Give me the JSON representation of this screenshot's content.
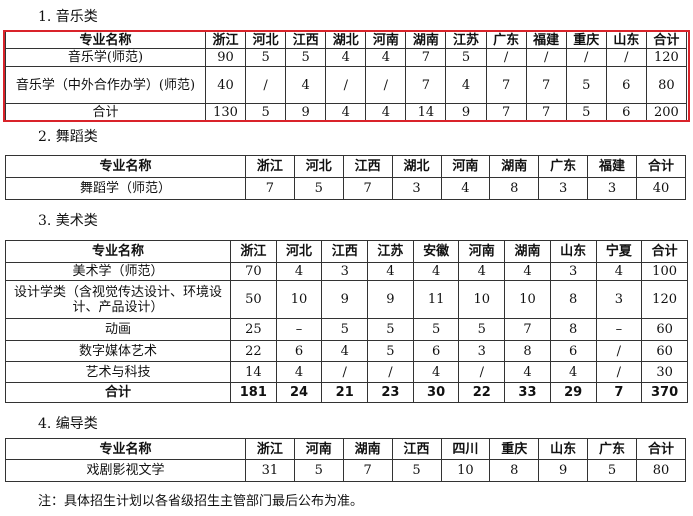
{
  "sections": [
    {
      "title": "1. 音乐类",
      "header": [
        "专业名称",
        "浙江",
        "河北",
        "江西",
        "湖北",
        "河南",
        "湖南",
        "江苏",
        "广东",
        "福建",
        "重庆",
        "山东",
        "合计"
      ],
      "rows": [
        [
          "音乐学(师范)",
          "90",
          "5",
          "5",
          "4",
          "4",
          "7",
          "5",
          "/",
          "/",
          "/",
          "/",
          "120"
        ],
        [
          "音乐学（中外合作办学）(师范)",
          "40",
          "/",
          "4",
          "/",
          "/",
          "7",
          "4",
          "7",
          "7",
          "5",
          "6",
          "80"
        ],
        [
          "合计",
          "130",
          "5",
          "9",
          "4",
          "4",
          "14",
          "9",
          "7",
          "7",
          "5",
          "6",
          "200"
        ]
      ],
      "highlight_color": "#d9232a"
    },
    {
      "title": "2. 舞蹈类",
      "header": [
        "专业名称",
        "浙江",
        "河北",
        "江西",
        "湖北",
        "河南",
        "湖南",
        "广东",
        "福建",
        "合计"
      ],
      "rows": [
        [
          "舞蹈学（师范）",
          "7",
          "5",
          "7",
          "3",
          "4",
          "8",
          "3",
          "3",
          "40"
        ]
      ]
    },
    {
      "title": "3. 美术类",
      "header": [
        "专业名称",
        "浙江",
        "河北",
        "江西",
        "江苏",
        "安徽",
        "河南",
        "湖南",
        "山东",
        "宁夏",
        "合计"
      ],
      "rows": [
        [
          "美术学（师范）",
          "70",
          "4",
          "3",
          "4",
          "4",
          "4",
          "4",
          "3",
          "4",
          "100"
        ],
        [
          "设计学类（含视觉传达设计、环境设计、产品设计）",
          "50",
          "10",
          "9",
          "9",
          "11",
          "10",
          "10",
          "8",
          "3",
          "120"
        ],
        [
          "动画",
          "25",
          "–",
          "5",
          "5",
          "5",
          "5",
          "7",
          "8",
          "–",
          "60"
        ],
        [
          "数字媒体艺术",
          "22",
          "6",
          "4",
          "5",
          "6",
          "3",
          "8",
          "6",
          "/",
          "60"
        ],
        [
          "艺术与科技",
          "14",
          "4",
          "/",
          "/",
          "4",
          "/",
          "4",
          "4",
          "/",
          "30"
        ],
        [
          "合计",
          "181",
          "24",
          "21",
          "23",
          "30",
          "22",
          "33",
          "29",
          "7",
          "370"
        ]
      ]
    },
    {
      "title": "4. 编导类",
      "header": [
        "专业名称",
        "浙江",
        "河南",
        "湖南",
        "江西",
        "四川",
        "重庆",
        "山东",
        "广东",
        "合计"
      ],
      "rows": [
        [
          "戏剧影视文学",
          "31",
          "5",
          "7",
          "5",
          "10",
          "8",
          "9",
          "5",
          "80"
        ]
      ]
    }
  ],
  "note": "注：具体招生计划以各省级招生主管部门最后公布为准。"
}
